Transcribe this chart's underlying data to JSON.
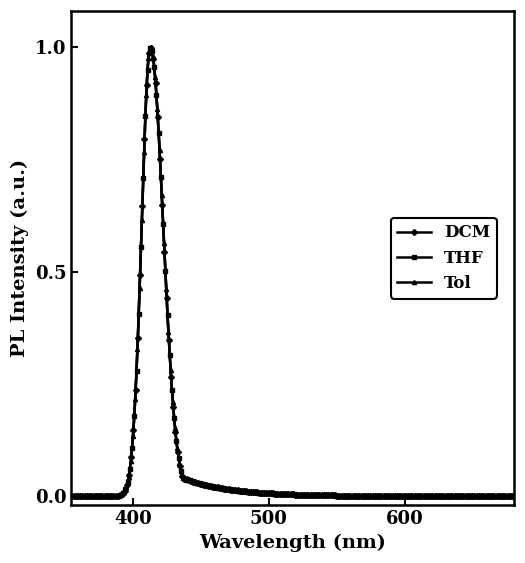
{
  "title": "",
  "xlabel": "Wavelength (nm)",
  "ylabel": "PL Intensity (a.u.)",
  "xlim": [
    355,
    680
  ],
  "ylim": [
    -0.02,
    1.08
  ],
  "yticks": [
    0.0,
    0.5,
    1.0
  ],
  "xticks": [
    400,
    500,
    600
  ],
  "peak_wavelength": 413,
  "line_color": "#000000",
  "background_color": "#ffffff",
  "legend_entries": [
    "DCM",
    "THF",
    "Tol"
  ],
  "legend_markers": [
    "D",
    "s",
    "^"
  ],
  "marker_size": 3,
  "linewidth": 1.8,
  "axis_fontsize": 14,
  "tick_fontsize": 13,
  "legend_fontsize": 12
}
